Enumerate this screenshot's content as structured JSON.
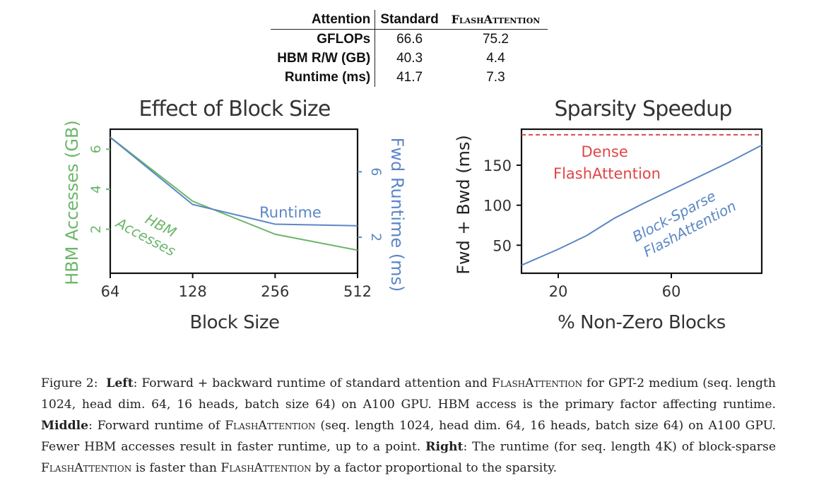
{
  "table": {
    "headers": [
      "Attention",
      "Standard",
      "FlashAttention"
    ],
    "rows": [
      {
        "label": "GFLOPs",
        "standard": "66.6",
        "flash": "75.2"
      },
      {
        "label": "HBM R/W (GB)",
        "standard": "40.3",
        "flash": "4.4"
      },
      {
        "label": "Runtime (ms)",
        "standard": "41.7",
        "flash": "7.3"
      }
    ]
  },
  "chart_data": [
    {
      "type": "line",
      "title": "Effect of Block Size",
      "xlabel": "Block Size",
      "ylabel_left": "HBM Accesses (GB)",
      "ylabel_right": "Fwd Runtime (ms)",
      "x": [
        64,
        128,
        256,
        512
      ],
      "x_ticks": [
        "64",
        "128",
        "256",
        "512"
      ],
      "y_left_ticks": [
        "2",
        "4",
        "6"
      ],
      "y_left_lim": [
        -0.2,
        7.0
      ],
      "y_right_ticks": [
        "2",
        "6"
      ],
      "y_right_lim": [
        -0.2,
        8.6
      ],
      "series": [
        {
          "name": "HBM Accesses",
          "axis": "left",
          "color": "#6bb66b",
          "values": [
            6.6,
            3.4,
            1.75,
            0.95
          ]
        },
        {
          "name": "Runtime",
          "axis": "right",
          "color": "#5b87c5",
          "values": [
            8.1,
            4.0,
            2.8,
            2.7
          ]
        }
      ],
      "colors": {
        "left_axis": "#6bb66b",
        "right_axis": "#5b87c5"
      }
    },
    {
      "type": "line",
      "title": "Sparsity Speedup",
      "xlabel": "% Non-Zero Blocks",
      "ylabel": "Fwd + Bwd (ms)",
      "x_ticks": [
        "20",
        "60"
      ],
      "x_lim": [
        7,
        92
      ],
      "y_ticks": [
        "50",
        "100",
        "150"
      ],
      "y_lim": [
        15,
        195
      ],
      "series": [
        {
          "name": "Dense FlashAttention",
          "color": "#e04646",
          "style": "dashed",
          "x": [
            7,
            92
          ],
          "values": [
            188,
            188
          ]
        },
        {
          "name": "Block-Sparse FlashAttention",
          "color": "#5b87c5",
          "x": [
            7,
            20,
            30,
            40,
            50,
            60,
            70,
            80,
            92
          ],
          "values": [
            25,
            45,
            62,
            84,
            102,
            119,
            136,
            153,
            175
          ]
        }
      ]
    }
  ],
  "caption": {
    "prefix": "Figure 2:",
    "left_label": "Left",
    "left_text_1": ": Forward + backward runtime of standard attention and ",
    "left_sc": "FlashAttention",
    "left_text_2": " for GPT-2 medium (seq. length 1024, head dim. 64, 16 heads, batch size 64) on A100 GPU. HBM access is the primary factor affecting runtime. ",
    "middle_label": "Middle",
    "middle_text_1": ": Forward runtime of ",
    "middle_sc": "FlashAttention",
    "middle_text_2": " (seq. length 1024, head dim. 64, 16 heads, batch size 64) on A100 GPU. Fewer HBM accesses result in faster runtime, up to a point. ",
    "right_label": "Right",
    "right_text_1": ": The runtime (for seq. length 4K) of block-sparse ",
    "right_sc_1": "FlashAttention",
    "right_text_2": " is faster than ",
    "right_sc_2": "FlashAttention",
    "right_text_3": " by a factor proportional to the sparsity."
  }
}
